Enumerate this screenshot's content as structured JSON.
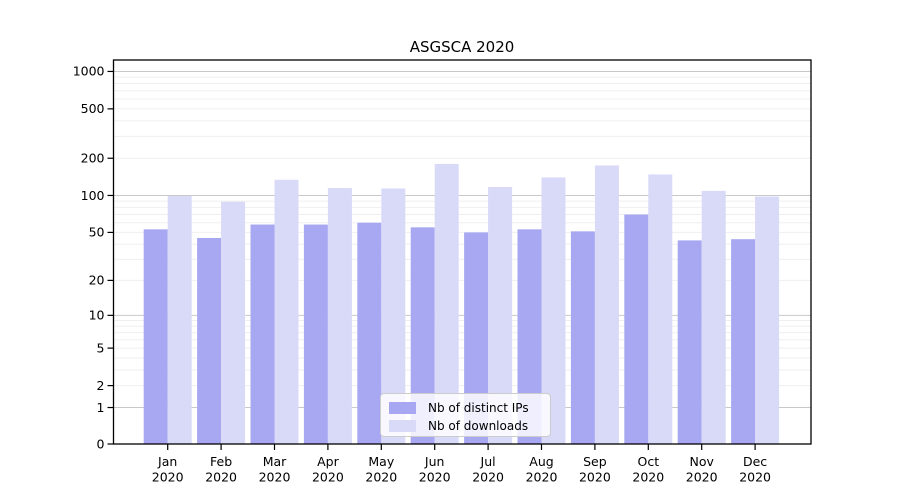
{
  "chart_data": {
    "type": "bar",
    "title": "ASGSCA 2020",
    "categories": [
      "Jan",
      "Feb",
      "Mar",
      "Apr",
      "May",
      "Jun",
      "Jul",
      "Aug",
      "Sep",
      "Oct",
      "Nov",
      "Dec"
    ],
    "x_year_label": "2020",
    "series": [
      {
        "name": "Nb of distinct IPs",
        "color": "#a8a8f2",
        "values": [
          53,
          45,
          58,
          58,
          60,
          55,
          50,
          53,
          51,
          70,
          43,
          44
        ]
      },
      {
        "name": "Nb of downloads",
        "color": "#d9d9f8",
        "values": [
          99,
          89,
          134,
          115,
          114,
          180,
          117,
          140,
          175,
          148,
          109,
          98
        ]
      }
    ],
    "y_ticks": [
      0,
      1,
      2,
      5,
      10,
      20,
      50,
      100,
      200,
      500,
      1000
    ],
    "y_scale": "log1p",
    "ylim": [
      0,
      1100
    ],
    "grid": "horizontal, log minor lines + darker lines at powers of 10",
    "legend_position": "lower center"
  },
  "colors": {
    "bar_ips": "#a8a8f2",
    "bar_downloads": "#d9d9f8",
    "grid_major": "#c9c9c9",
    "grid_minor": "#efefef",
    "axis": "#000000",
    "legend_border": "#cccccc",
    "background": "#ffffff"
  }
}
